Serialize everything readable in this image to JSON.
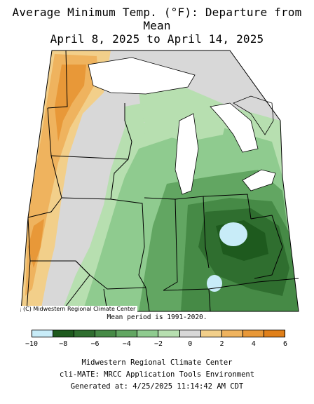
{
  "title": {
    "line1": "Average Minimum Temp. (°F): Departure from Mean",
    "line2": "April 8, 2025 to April 14, 2025"
  },
  "map": {
    "copyright": "(C) Midwestern Regional Climate Center",
    "mean_period": "Mean period is 1991-2020."
  },
  "legend": {
    "tick_labels": [
      "−10",
      "−8",
      "−6",
      "−4",
      "−2",
      "0",
      "2",
      "4",
      "6"
    ],
    "colors": [
      "#c8ecf8",
      "#1e5a1e",
      "#2f6e2f",
      "#468a46",
      "#62a662",
      "#8fcb8f",
      "#b7dfb0",
      "#d8d8d8",
      "#f2cf8a",
      "#efb35e",
      "#e89838",
      "#e0801a"
    ]
  },
  "footer": {
    "line1": "Midwestern Regional Climate Center",
    "line2": "cli-MATE: MRCC Application Tools Environment",
    "line3": "Generated at: 4/25/2025 11:14:42 AM CDT"
  }
}
